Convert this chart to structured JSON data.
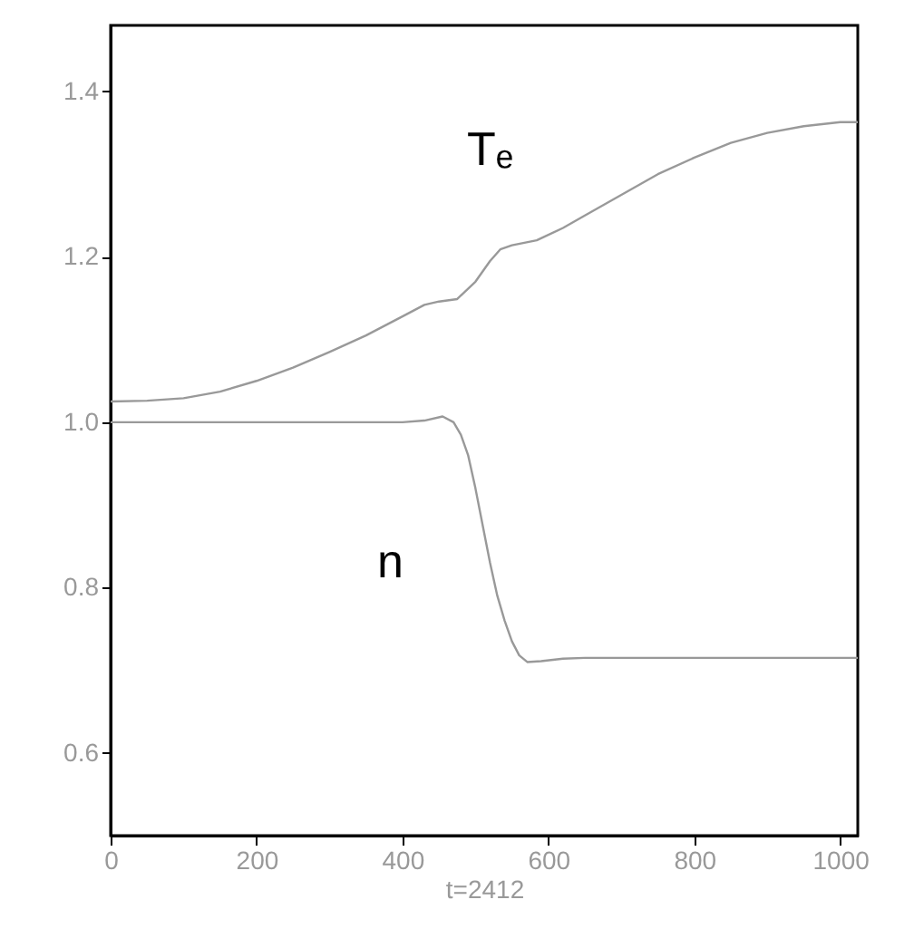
{
  "chart_data": {
    "type": "line",
    "xlabel": "t=2412",
    "xlim": [
      0,
      1024
    ],
    "ylim": [
      0.5,
      1.48
    ],
    "xticks": [
      0,
      200,
      400,
      600,
      800,
      1000
    ],
    "yticks": [
      0.6,
      0.8,
      {
        "value": 1,
        "label": "1.0"
      },
      1.2,
      1.4
    ],
    "marker": "none",
    "line_style": "solid",
    "series": [
      {
        "name": "Tₑ",
        "color": "#999999",
        "x": [
          0,
          50,
          100,
          150,
          200,
          250,
          300,
          350,
          400,
          430,
          450,
          475,
          500,
          520,
          534,
          550,
          584,
          620,
          650,
          700,
          750,
          800,
          850,
          900,
          950,
          1000,
          1024
        ],
        "values": [
          1.025,
          1.026,
          1.029,
          1.037,
          1.05,
          1.066,
          1.085,
          1.105,
          1.128,
          1.142,
          1.146,
          1.149,
          1.17,
          1.195,
          1.209,
          1.214,
          1.22,
          1.235,
          1.25,
          1.275,
          1.3,
          1.32,
          1.338,
          1.35,
          1.358,
          1.363,
          1.363
        ]
      },
      {
        "name": "n",
        "color": "#999999",
        "x": [
          0,
          100,
          200,
          300,
          400,
          430,
          455,
          470,
          480,
          490,
          500,
          510,
          520,
          530,
          540,
          550,
          560,
          571,
          590,
          620,
          650,
          700,
          800,
          900,
          1024
        ],
        "values": [
          1.0,
          1.0,
          1.0,
          1.0,
          1.0,
          1.002,
          1.007,
          1.0,
          0.985,
          0.96,
          0.92,
          0.875,
          0.83,
          0.79,
          0.76,
          0.735,
          0.718,
          0.71,
          0.711,
          0.714,
          0.715,
          0.715,
          0.715,
          0.715,
          0.715
        ]
      }
    ]
  }
}
